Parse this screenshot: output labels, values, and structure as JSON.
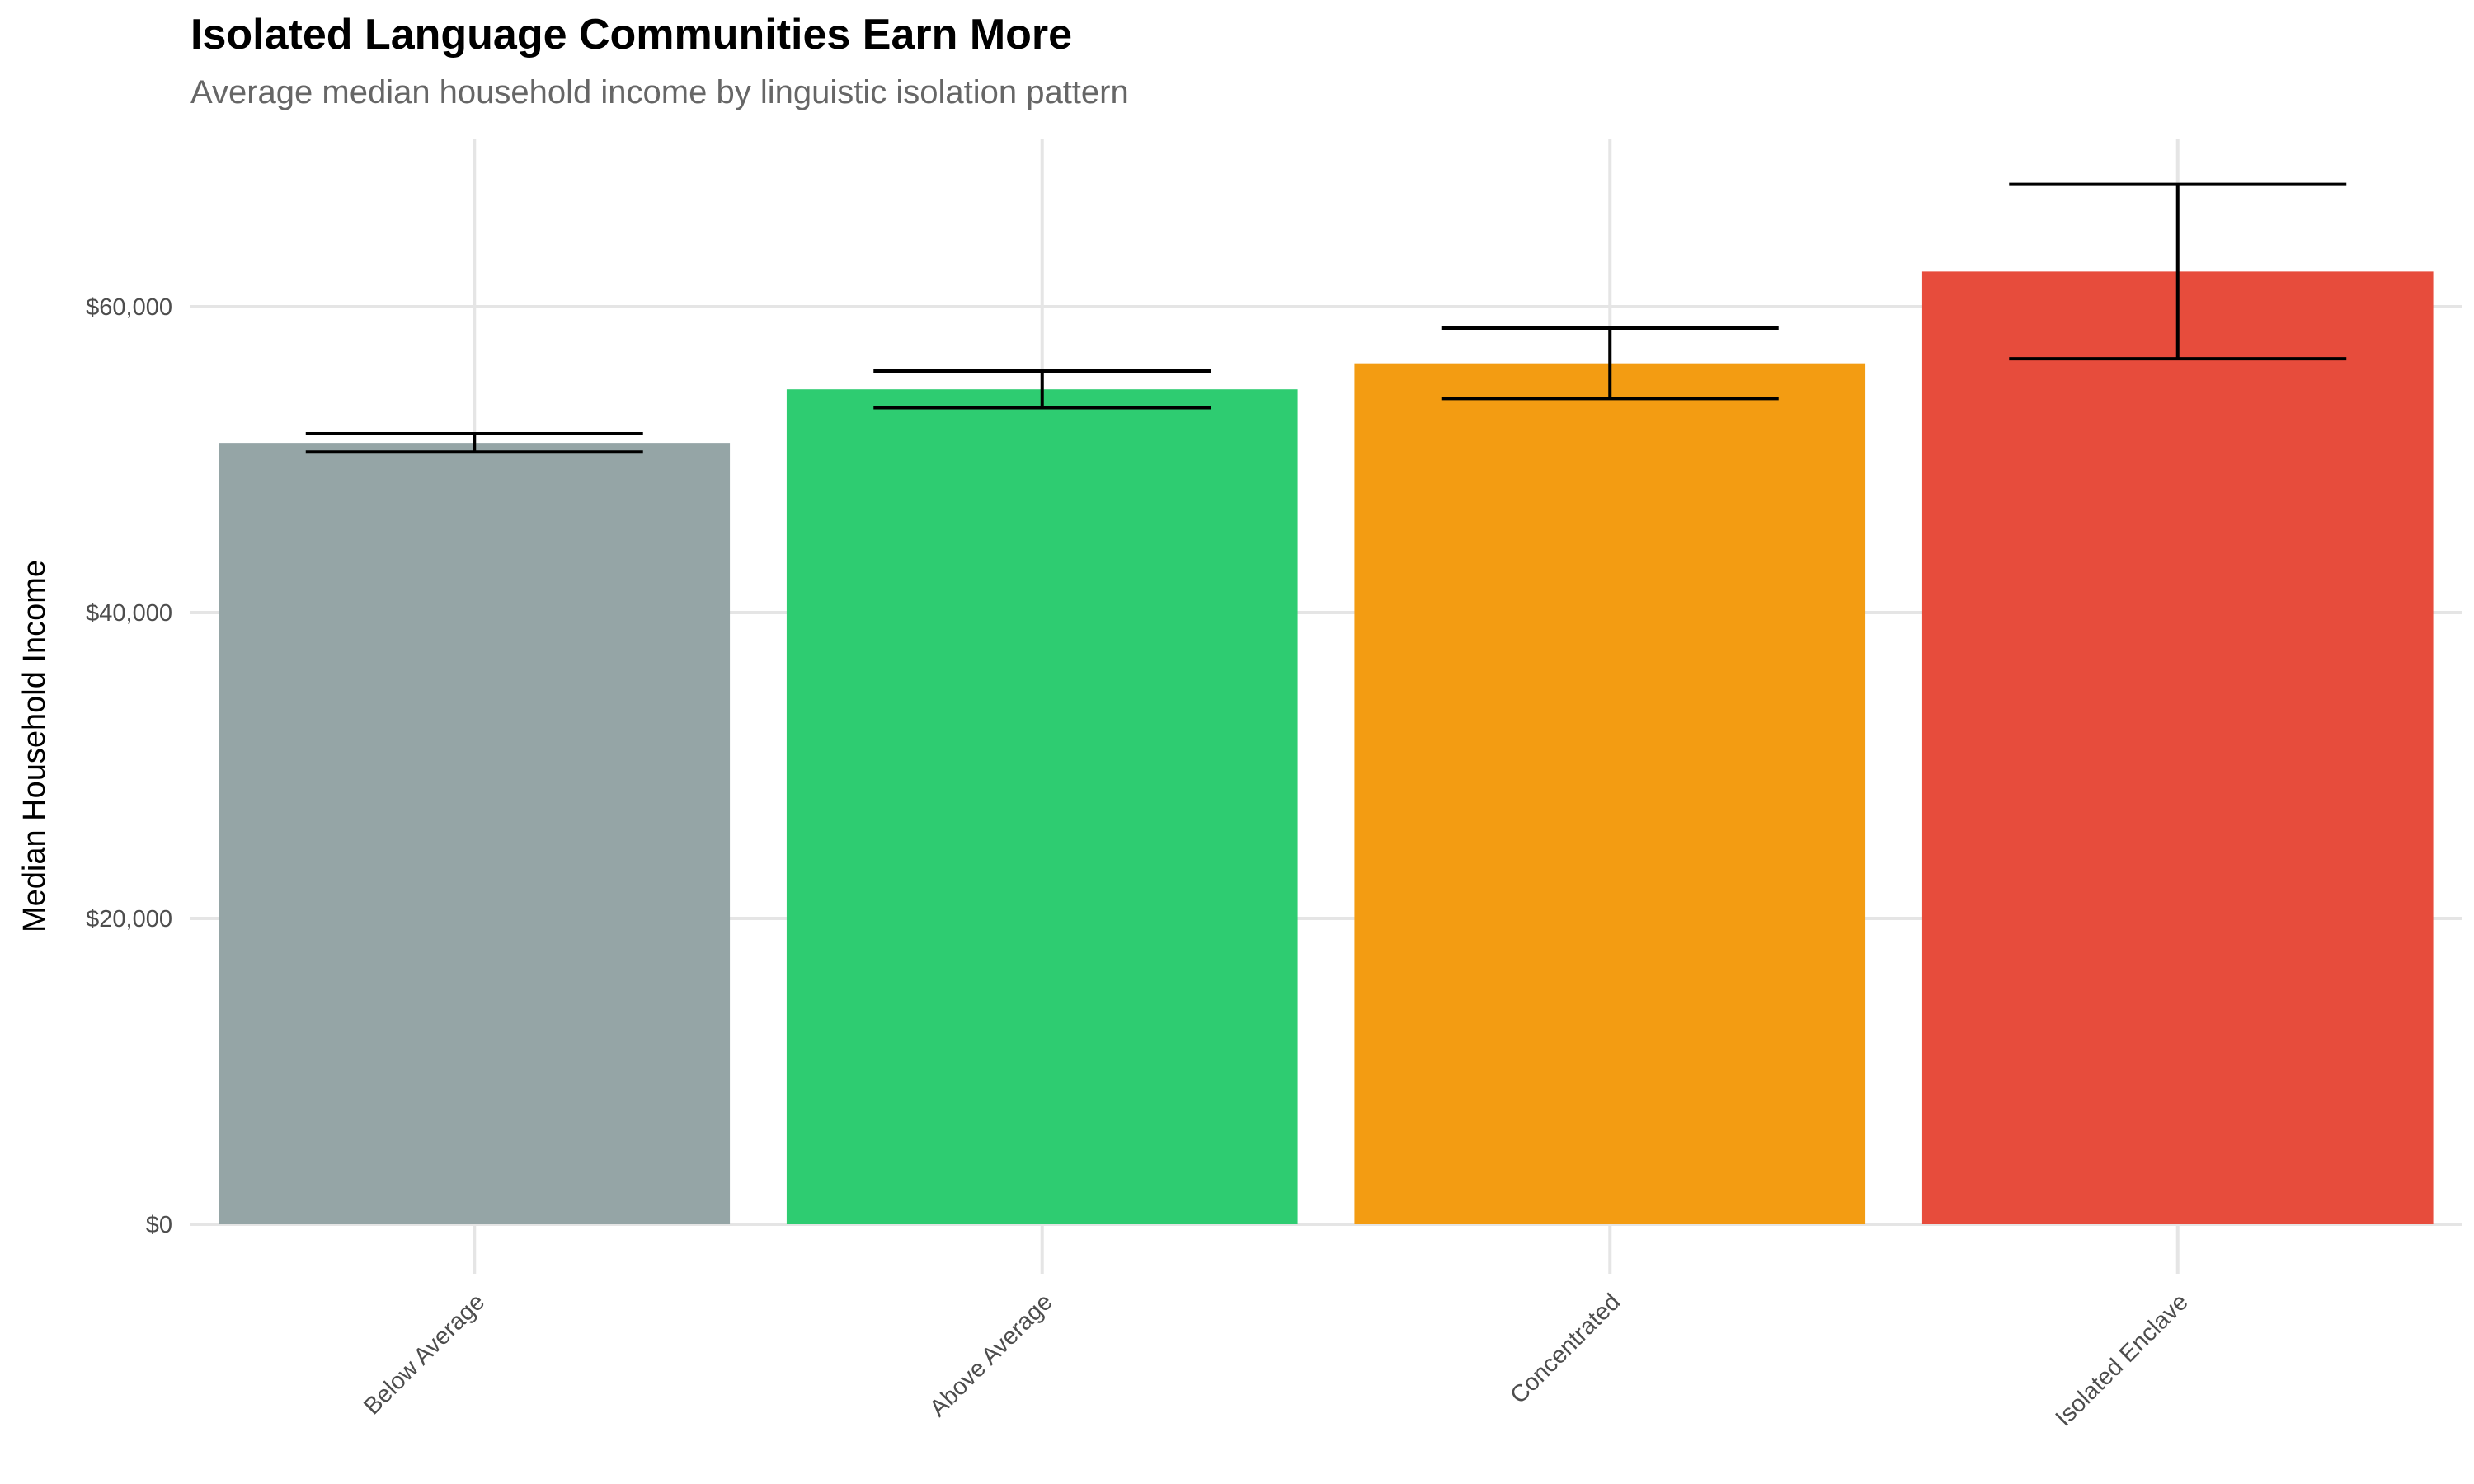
{
  "chart_data": {
    "type": "bar",
    "title": "Isolated Language Communities Earn More",
    "subtitle": "Average median household income by linguistic isolation pattern",
    "xlabel": "",
    "ylabel": "Median Household Income",
    "categories": [
      "Below Average",
      "Above Average",
      "Concentrated",
      "Isolated Enclave"
    ],
    "values": [
      51100,
      54600,
      56300,
      62300
    ],
    "error_low": [
      50500,
      53400,
      54000,
      56600
    ],
    "error_high": [
      51700,
      55800,
      58600,
      68000
    ],
    "colors": [
      "#95a5a6",
      "#2ecc71",
      "#f39c12",
      "#e74c3c"
    ],
    "ylim": [
      0,
      71000
    ],
    "yticks": [
      0,
      20000,
      40000,
      60000
    ],
    "ytick_labels": [
      "$0",
      "$20,000",
      "$40,000",
      "$60,000"
    ],
    "grid": true,
    "legend": "none"
  }
}
